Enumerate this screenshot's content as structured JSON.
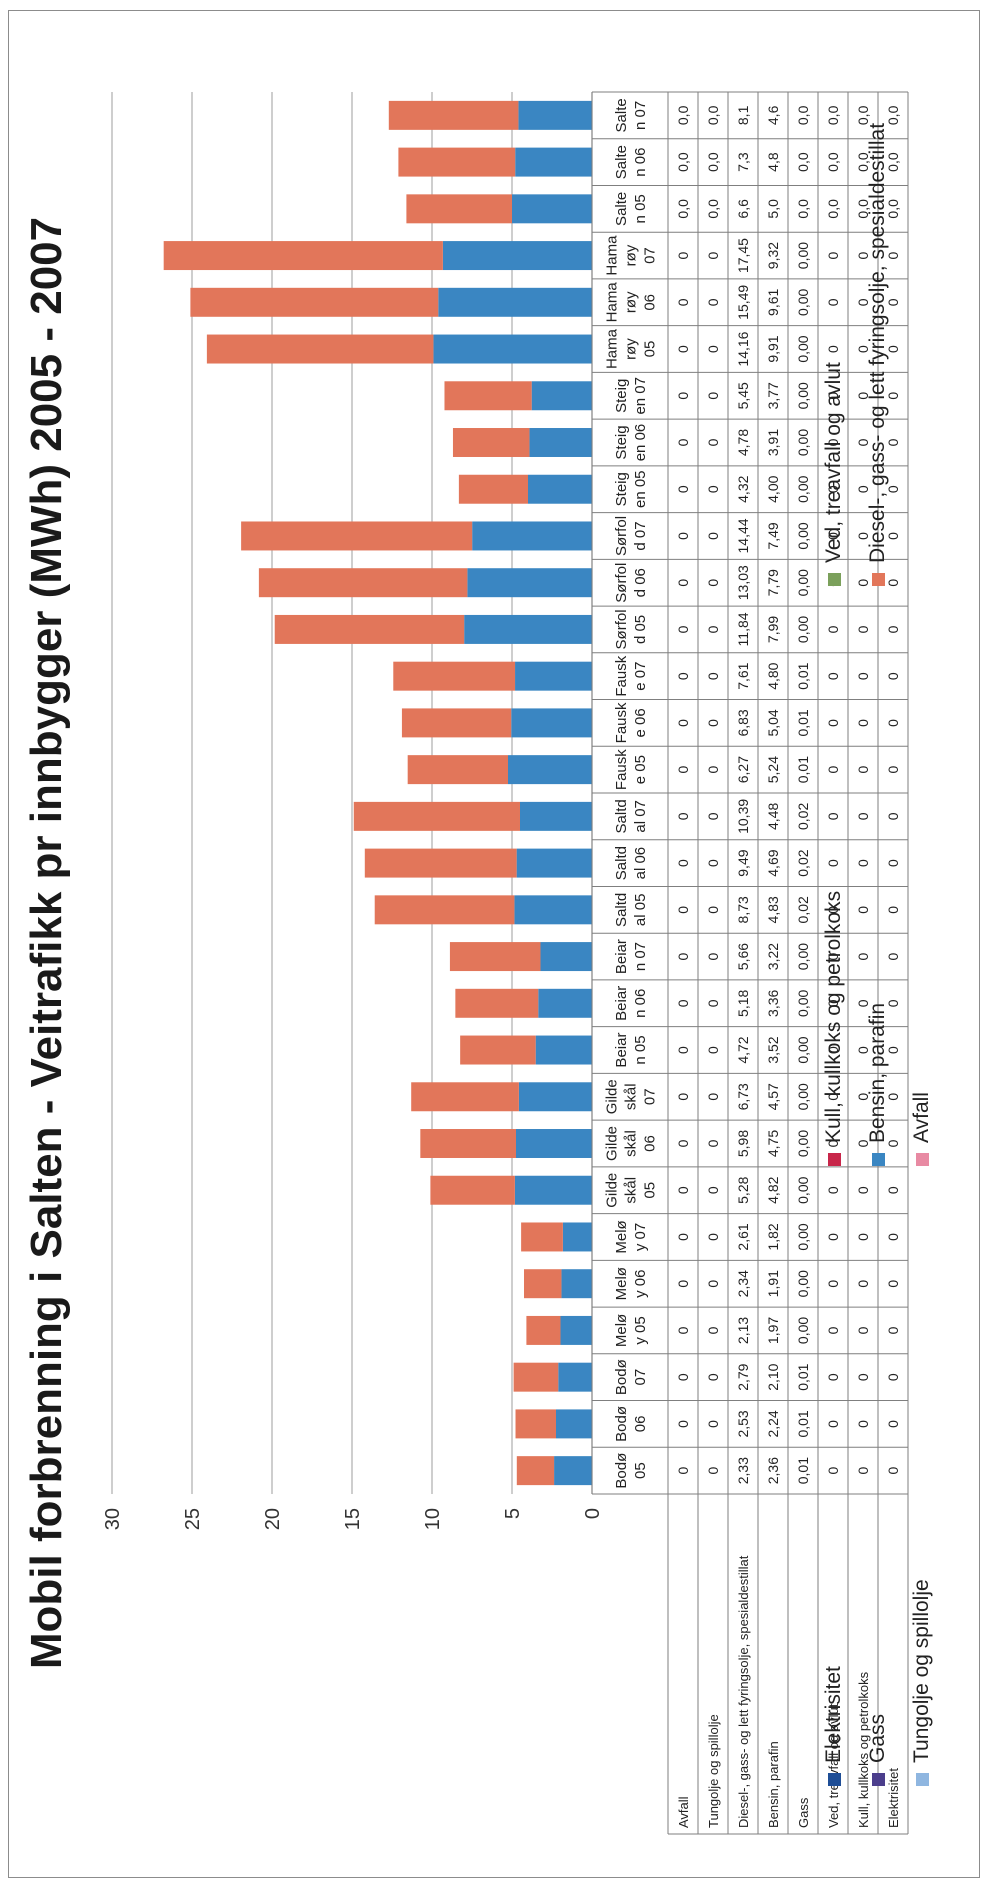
{
  "chart_data": {
    "type": "bar",
    "stacked": true,
    "title": "Mobil forbrenning i Salten - Veitrafikk pr innbygger (MWh) 2005 - 2007",
    "ylim": [
      0,
      30
    ],
    "yticks": [
      0,
      5,
      10,
      15,
      20,
      25,
      30
    ],
    "grid": true,
    "legend_position": "bottom",
    "categories": [
      "Bodø 05",
      "Bodø 06",
      "Bodø 07",
      "Meløy 05",
      "Meløy 06",
      "Meløy 07",
      "Gildeskål 05",
      "Gildeskål 06",
      "Gildeskål 07",
      "Beiarn 05",
      "Beiarn 06",
      "Beiarn 07",
      "Saltdal 05",
      "Saltdal 06",
      "Saltdal 07",
      "Fauske 05",
      "Fauske 06",
      "Fauske 07",
      "Sørfold 05",
      "Sørfold 06",
      "Sørfold 07",
      "Steigen 05",
      "Steigen 06",
      "Steigen 07",
      "Hamarøy 05",
      "Hamarøy 06",
      "Hamarøy 07",
      "Salten 05",
      "Salten 06",
      "Salten 07"
    ],
    "category_lines": [
      [
        "Bodø",
        "05"
      ],
      [
        "Bodø",
        "06"
      ],
      [
        "Bodø",
        "07"
      ],
      [
        "Melø",
        "y 05"
      ],
      [
        "Melø",
        "y 06"
      ],
      [
        "Melø",
        "y 07"
      ],
      [
        "Gilde",
        "skål",
        "05"
      ],
      [
        "Gilde",
        "skål",
        "06"
      ],
      [
        "Gilde",
        "skål",
        "07"
      ],
      [
        "Beiar",
        "n 05"
      ],
      [
        "Beiar",
        "n 06"
      ],
      [
        "Beiar",
        "n 07"
      ],
      [
        "Saltd",
        "al 05"
      ],
      [
        "Saltd",
        "al 06"
      ],
      [
        "Saltd",
        "al 07"
      ],
      [
        "Fausk",
        "e 05"
      ],
      [
        "Fausk",
        "e 06"
      ],
      [
        "Fausk",
        "e 07"
      ],
      [
        "Sørfol",
        "d 05"
      ],
      [
        "Sørfol",
        "d 06"
      ],
      [
        "Sørfol",
        "d 07"
      ],
      [
        "Steig",
        "en 05"
      ],
      [
        "Steig",
        "en 06"
      ],
      [
        "Steig",
        "en 07"
      ],
      [
        "Hama",
        "røy",
        "05"
      ],
      [
        "Hama",
        "røy",
        "06"
      ],
      [
        "Hama",
        "røy",
        "07"
      ],
      [
        "Salte",
        "n 05"
      ],
      [
        "Salte",
        "n 06"
      ],
      [
        "Salte",
        "n 07"
      ]
    ],
    "series": [
      {
        "name": "Elektrisitet",
        "color": "#1f4e96",
        "values": [
          0,
          0,
          0,
          0,
          0,
          0,
          0,
          0,
          0,
          0,
          0,
          0,
          0,
          0,
          0,
          0,
          0,
          0,
          0,
          0,
          0,
          0,
          0,
          0,
          0,
          0,
          0,
          0,
          0,
          0
        ]
      },
      {
        "name": "Kull, kullkoks og petrolkoks",
        "color": "#c8264a",
        "values": [
          0,
          0,
          0,
          0,
          0,
          0,
          0,
          0,
          0,
          0,
          0,
          0,
          0,
          0,
          0,
          0,
          0,
          0,
          0,
          0,
          0,
          0,
          0,
          0,
          0,
          0,
          0,
          0,
          0,
          0
        ]
      },
      {
        "name": "Ved, treavfall og avlut",
        "color": "#7ba05b",
        "values": [
          0,
          0,
          0,
          0,
          0,
          0,
          0,
          0,
          0,
          0,
          0,
          0,
          0,
          0,
          0,
          0,
          0,
          0,
          0,
          0,
          0,
          0,
          0,
          0,
          0,
          0,
          0,
          0,
          0,
          0
        ]
      },
      {
        "name": "Gass",
        "color": "#4b3e8c",
        "values": [
          0.01,
          0.01,
          0.01,
          0.0,
          0.0,
          0.0,
          0.0,
          0.0,
          0.0,
          0.0,
          0.0,
          0.0,
          0.02,
          0.02,
          0.02,
          0.01,
          0.01,
          0.01,
          0.0,
          0.0,
          0.0,
          0.0,
          0.0,
          0.0,
          0.0,
          0.0,
          0.0,
          0.0,
          0.0,
          0.0
        ]
      },
      {
        "name": "Bensin, parafin",
        "color": "#3a86c2",
        "values": [
          2.36,
          2.24,
          2.1,
          1.97,
          1.91,
          1.82,
          4.82,
          4.75,
          4.57,
          3.52,
          3.36,
          3.22,
          4.83,
          4.69,
          4.48,
          5.24,
          5.04,
          4.8,
          7.99,
          7.79,
          7.49,
          4.0,
          3.91,
          3.77,
          9.91,
          9.61,
          9.32,
          5.0,
          4.8,
          4.6
        ]
      },
      {
        "name": "Diesel-, gass- og lett fyringsolje, spesialdestillat",
        "color": "#e2765a",
        "values": [
          2.33,
          2.53,
          2.79,
          2.13,
          2.34,
          2.61,
          5.28,
          5.98,
          6.73,
          4.72,
          5.18,
          5.66,
          8.73,
          9.49,
          10.39,
          6.27,
          6.83,
          7.61,
          11.84,
          13.03,
          14.44,
          4.32,
          4.78,
          5.45,
          14.16,
          15.49,
          17.45,
          6.6,
          7.3,
          8.1
        ]
      },
      {
        "name": "Tungolje og spillolje",
        "color": "#8fb6e0",
        "values": [
          0,
          0,
          0,
          0,
          0,
          0,
          0,
          0,
          0,
          0,
          0,
          0,
          0,
          0,
          0,
          0,
          0,
          0,
          0,
          0,
          0,
          0,
          0,
          0,
          0,
          0,
          0,
          0,
          0,
          0
        ]
      },
      {
        "name": "Avfall",
        "color": "#e88aa3",
        "values": [
          0,
          0,
          0,
          0,
          0,
          0,
          0,
          0,
          0,
          0,
          0,
          0,
          0,
          0,
          0,
          0,
          0,
          0,
          0,
          0,
          0,
          0,
          0,
          0,
          0,
          0,
          0,
          0,
          0,
          0
        ]
      }
    ],
    "table": {
      "rows": [
        {
          "label": "Avfall",
          "cells": [
            "0",
            "0",
            "0",
            "0",
            "0",
            "0",
            "0",
            "0",
            "0",
            "0",
            "0",
            "0",
            "0",
            "0",
            "0",
            "0",
            "0",
            "0",
            "0",
            "0",
            "0",
            "0",
            "0",
            "0",
            "0",
            "0",
            "0",
            "0,0",
            "0,0",
            "0,0"
          ]
        },
        {
          "label": "Tungolje og spillolje",
          "cells": [
            "0",
            "0",
            "0",
            "0",
            "0",
            "0",
            "0",
            "0",
            "0",
            "0",
            "0",
            "0",
            "0",
            "0",
            "0",
            "0",
            "0",
            "0",
            "0",
            "0",
            "0",
            "0",
            "0",
            "0",
            "0",
            "0",
            "0",
            "0,0",
            "0,0",
            "0,0"
          ]
        },
        {
          "label": "Diesel-, gass- og lett fyringsolje, spesialdestillat",
          "cells": [
            "2,33",
            "2,53",
            "2,79",
            "2,13",
            "2,34",
            "2,61",
            "5,28",
            "5,98",
            "6,73",
            "4,72",
            "5,18",
            "5,66",
            "8,73",
            "9,49",
            "10,39",
            "6,27",
            "6,83",
            "7,61",
            "11,84",
            "13,03",
            "14,44",
            "4,32",
            "4,78",
            "5,45",
            "14,16",
            "15,49",
            "17,45",
            "6,6",
            "7,3",
            "8,1"
          ]
        },
        {
          "label": "Bensin, parafin",
          "cells": [
            "2,36",
            "2,24",
            "2,10",
            "1,97",
            "1,91",
            "1,82",
            "4,82",
            "4,75",
            "4,57",
            "3,52",
            "3,36",
            "3,22",
            "4,83",
            "4,69",
            "4,48",
            "5,24",
            "5,04",
            "4,80",
            "7,99",
            "7,79",
            "7,49",
            "4,00",
            "3,91",
            "3,77",
            "9,91",
            "9,61",
            "9,32",
            "5,0",
            "4,8",
            "4,6"
          ]
        },
        {
          "label": "Gass",
          "cells": [
            "0,01",
            "0,01",
            "0,01",
            "0,00",
            "0,00",
            "0,00",
            "0,00",
            "0,00",
            "0,00",
            "0,00",
            "0,00",
            "0,00",
            "0,02",
            "0,02",
            "0,02",
            "0,01",
            "0,01",
            "0,01",
            "0,00",
            "0,00",
            "0,00",
            "0,00",
            "0,00",
            "0,00",
            "0,00",
            "0,00",
            "0,00",
            "0,0",
            "0,0",
            "0,0"
          ]
        },
        {
          "label": "Ved, treavfall og avlut",
          "cells": [
            "0",
            "0",
            "0",
            "0",
            "0",
            "0",
            "0",
            "0",
            "0",
            "0",
            "0",
            "0",
            "0",
            "0",
            "0",
            "0",
            "0",
            "0",
            "0",
            "0",
            "0",
            "0",
            "0",
            "0",
            "0",
            "0",
            "0",
            "0,0",
            "0,0",
            "0,0"
          ]
        },
        {
          "label": "Kull, kullkoks og petrolkoks",
          "cells": [
            "0",
            "0",
            "0",
            "0",
            "0",
            "0",
            "0",
            "0",
            "0",
            "0",
            "0",
            "0",
            "0",
            "0",
            "0",
            "0",
            "0",
            "0",
            "0",
            "0",
            "0",
            "0",
            "0",
            "0",
            "0",
            "0",
            "0",
            "0,0",
            "0,0",
            "0,0"
          ]
        },
        {
          "label": "Elektrisitet",
          "cells": [
            "0",
            "0",
            "0",
            "0",
            "0",
            "0",
            "0",
            "0",
            "0",
            "0",
            "0",
            "0",
            "0",
            "0",
            "0",
            "0",
            "0",
            "0",
            "0",
            "0",
            "0",
            "0",
            "0",
            "0",
            "0",
            "0",
            "0",
            "0,0",
            "0,0",
            "0,0"
          ]
        }
      ]
    },
    "legend": [
      {
        "label": "Elektrisitet",
        "color": "#1f4e96"
      },
      {
        "label": "Kull, kullkoks og petrolkoks",
        "color": "#c8264a"
      },
      {
        "label": "Ved, treavfall og avlut",
        "color": "#7ba05b"
      },
      {
        "label": "Gass",
        "color": "#4b3e8c"
      },
      {
        "label": "Bensin, parafin",
        "color": "#3a86c2"
      },
      {
        "label": "Diesel-, gass- og lett fyringsolje, spesialdestillat",
        "color": "#e2765a"
      },
      {
        "label": "Tungolje og spillolje",
        "color": "#8fb6e0"
      },
      {
        "label": "Avfall",
        "color": "#e88aa3"
      }
    ]
  }
}
